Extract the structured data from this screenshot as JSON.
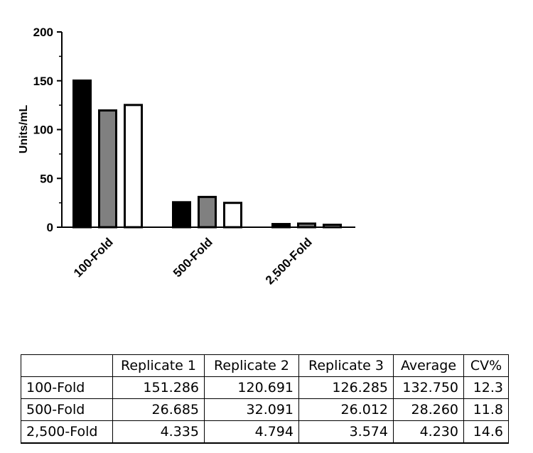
{
  "chart_data": {
    "type": "bar",
    "ylabel": "Units/mL",
    "xlabel": "",
    "ylim": [
      0,
      200
    ],
    "yticks": [
      0,
      50,
      100,
      150,
      200
    ],
    "categories": [
      "100-Fold",
      "500-Fold",
      "2,500-Fold"
    ],
    "series": [
      {
        "values": [
          151.286,
          26.685,
          4.335
        ],
        "color": "#000000"
      },
      {
        "values": [
          120.691,
          32.091,
          4.794
        ],
        "color": "#808080"
      },
      {
        "values": [
          126.285,
          26.012,
          3.574
        ],
        "color": "#ffffff"
      }
    ],
    "grid": false,
    "legend": "none"
  },
  "table": {
    "headers": [
      "",
      "Replicate 1",
      "Replicate 2",
      "Replicate 3",
      "Average",
      "CV%"
    ],
    "rows": [
      [
        "100-Fold",
        "151.286",
        "120.691",
        "126.285",
        "132.750",
        "12.3"
      ],
      [
        "500-Fold",
        "26.685",
        "32.091",
        "26.012",
        "28.260",
        "11.8"
      ],
      [
        "2,500-Fold",
        "4.335",
        "4.794",
        "3.574",
        "4.230",
        "14.6"
      ]
    ]
  }
}
